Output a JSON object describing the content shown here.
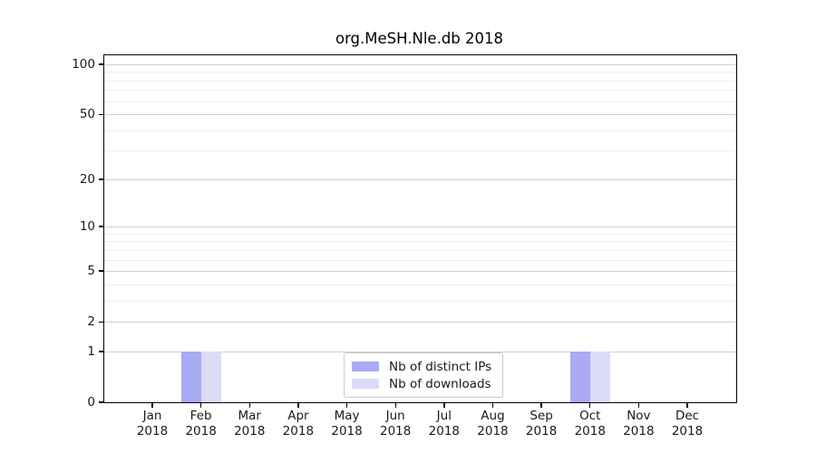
{
  "chart_data": {
    "type": "bar",
    "title": "org.MeSH.Nle.db 2018",
    "year_label": "2018",
    "months": [
      "Jan",
      "Feb",
      "Mar",
      "Apr",
      "May",
      "Jun",
      "Jul",
      "Aug",
      "Sep",
      "Oct",
      "Nov",
      "Dec"
    ],
    "series": [
      {
        "name": "Nb of distinct IPs",
        "color": "#aaaaf5",
        "values": [
          0,
          1,
          0,
          0,
          0,
          0,
          0,
          0,
          0,
          1,
          0,
          0
        ]
      },
      {
        "name": "Nb of downloads",
        "color": "#dcdcf8",
        "values": [
          0,
          1,
          0,
          0,
          0,
          0,
          0,
          0,
          0,
          1,
          0,
          0
        ]
      }
    ],
    "xlabel": "",
    "ylabel": "",
    "yscale": "log1p",
    "yticks": [
      0,
      1,
      2,
      5,
      10,
      20,
      50,
      100
    ],
    "yticks_minor": [
      3,
      4,
      6,
      7,
      8,
      9,
      30,
      40,
      60,
      70,
      80,
      90
    ],
    "ylim": [
      0,
      113
    ],
    "grid": "horizontal",
    "legend_position": "lower-center-inside",
    "colors": {
      "axis": "#000000",
      "text": "#1a1a1a",
      "grid_major": "#d0d0d0",
      "grid_minor": "#ededed",
      "legend_border": "#c9c9c9",
      "background": "#ffffff"
    }
  }
}
